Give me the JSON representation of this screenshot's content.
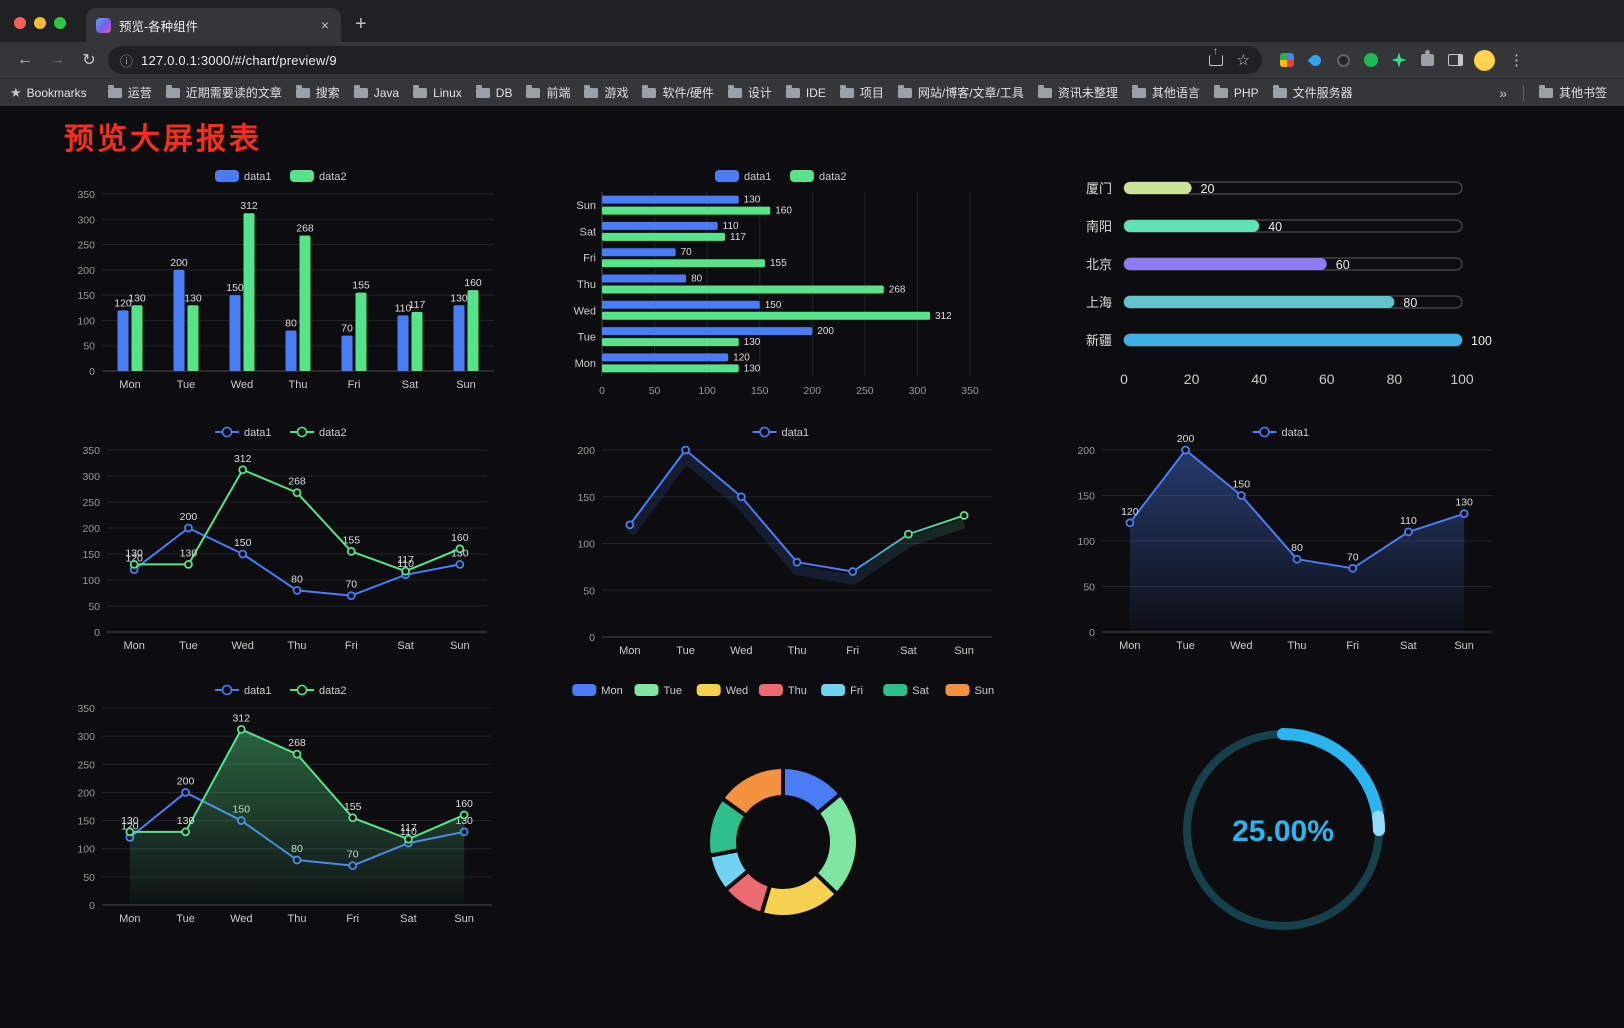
{
  "browser": {
    "tab": {
      "title": "预览-各种组件",
      "close": "×"
    },
    "new_tab": "+",
    "nav": {
      "back": "←",
      "forward": "→",
      "reload": "↻",
      "info": "ⓘ"
    },
    "url": "127.0.0.1:3000/#/chart/preview/9",
    "actions": {
      "star": "☆",
      "menu": "⋮"
    },
    "bookmarks_bar": {
      "manager_star": "★",
      "label": "Bookmarks",
      "items": [
        "运营",
        "近期需要读的文章",
        "搜索",
        "Java",
        "Linux",
        "DB",
        "前端",
        "游戏",
        "软件/硬件",
        "设计",
        "IDE",
        "项目",
        "网站/博客/文章/工具",
        "资讯未整理",
        "其他语言",
        "PHP",
        "文件服务器"
      ],
      "overflow": "»",
      "other": "其他书签"
    }
  },
  "page": {
    "title": "预览大屏报表",
    "title_color": "#f5301e",
    "background": "#0d0d10"
  },
  "chart_data": [
    {
      "id": "grouped-bar",
      "type": "bar",
      "legend_position": "top",
      "categories": [
        "Mon",
        "Tue",
        "Wed",
        "Thu",
        "Fri",
        "Sat",
        "Sun"
      ],
      "series": [
        {
          "name": "data1",
          "color": "#4a7df5",
          "values": [
            120,
            200,
            150,
            80,
            70,
            110,
            130
          ]
        },
        {
          "name": "data2",
          "color": "#57e389",
          "values": [
            130,
            130,
            312,
            268,
            155,
            117,
            160
          ]
        }
      ],
      "ylim": [
        0,
        350
      ],
      "ytick": 50,
      "grid": true
    },
    {
      "id": "horizontal-bar",
      "type": "bar-horizontal",
      "legend_position": "top",
      "categories": [
        "Mon",
        "Tue",
        "Wed",
        "Thu",
        "Fri",
        "Sat",
        "Sun"
      ],
      "series": [
        {
          "name": "data1",
          "color": "#4a7df5",
          "values": [
            120,
            200,
            150,
            80,
            70,
            110,
            130
          ]
        },
        {
          "name": "data2",
          "color": "#57e389",
          "values": [
            130,
            130,
            312,
            268,
            155,
            117,
            160
          ]
        }
      ],
      "xlim": [
        0,
        350
      ],
      "xtick": 50,
      "grid": true
    },
    {
      "id": "capsule-bar",
      "type": "capsule",
      "categories": [
        "厦门",
        "南阳",
        "北京",
        "上海",
        "新疆"
      ],
      "values": [
        20,
        40,
        60,
        80,
        100
      ],
      "colors": [
        "#cbe495",
        "#5fe3b5",
        "#8d7bf2",
        "#62c5ce",
        "#3fb0e8"
      ],
      "xlim": [
        0,
        100
      ],
      "xticks": [
        0,
        20,
        40,
        60,
        80,
        100
      ]
    },
    {
      "id": "dual-line",
      "type": "line",
      "legend_position": "top",
      "categories": [
        "Mon",
        "Tue",
        "Wed",
        "Thu",
        "Fri",
        "Sat",
        "Sun"
      ],
      "series": [
        {
          "name": "data1",
          "color": "#4a7df5",
          "values": [
            120,
            200,
            150,
            80,
            70,
            110,
            130
          ],
          "labels": true
        },
        {
          "name": "data2",
          "color": "#57e389",
          "values": [
            130,
            130,
            312,
            268,
            155,
            117,
            160
          ],
          "labels": true
        }
      ],
      "ylim": [
        0,
        350
      ],
      "ytick": 50,
      "grid": true
    },
    {
      "id": "gradient-line",
      "type": "line",
      "legend_position": "top",
      "categories": [
        "Mon",
        "Tue",
        "Wed",
        "Thu",
        "Fri",
        "Sat",
        "Sun"
      ],
      "series": [
        {
          "name": "data1",
          "color": "#4a7df5",
          "color_end": "#57e389",
          "gradient": true,
          "glow": true,
          "values": [
            120,
            200,
            150,
            80,
            70,
            110,
            130
          ]
        }
      ],
      "ylim": [
        0,
        200
      ],
      "ytick": 50,
      "grid": true
    },
    {
      "id": "area-line",
      "type": "line",
      "legend_position": "top",
      "categories": [
        "Mon",
        "Tue",
        "Wed",
        "Thu",
        "Fri",
        "Sat",
        "Sun"
      ],
      "series": [
        {
          "name": "data1",
          "color": "#4a7df5",
          "values": [
            120,
            200,
            150,
            80,
            70,
            110,
            130
          ],
          "labels": true,
          "area": true
        }
      ],
      "ylim": [
        0,
        200
      ],
      "ytick": 50,
      "grid": true
    },
    {
      "id": "dual-line-area",
      "type": "line",
      "legend_position": "top",
      "categories": [
        "Mon",
        "Tue",
        "Wed",
        "Thu",
        "Fri",
        "Sat",
        "Sun"
      ],
      "series": [
        {
          "name": "data1",
          "color": "#4a7df5",
          "values": [
            120,
            200,
            150,
            80,
            70,
            110,
            130
          ],
          "labels": true
        },
        {
          "name": "data2",
          "color": "#57e389",
          "values": [
            130,
            130,
            312,
            268,
            155,
            117,
            160
          ],
          "labels": true,
          "area": true
        }
      ],
      "ylim": [
        0,
        350
      ],
      "ytick": 50,
      "grid": true
    },
    {
      "id": "donut",
      "type": "pie",
      "legend_position": "top",
      "categories": [
        "Mon",
        "Tue",
        "Wed",
        "Thu",
        "Fri",
        "Sat",
        "Sun"
      ],
      "values": [
        120,
        200,
        150,
        80,
        70,
        110,
        130
      ],
      "colors": [
        "#4a7df5",
        "#7ce6a2",
        "#f6d04f",
        "#ec6a72",
        "#6fd4f3",
        "#2ec08b",
        "#f2913e"
      ],
      "inner_radius_ratio": 0.6
    },
    {
      "id": "gauge",
      "type": "gauge",
      "value": 25,
      "label": "25.00%",
      "color": "#2ab5f0",
      "tip_color": "#8fdcfb",
      "track_color": "#17404d"
    }
  ]
}
